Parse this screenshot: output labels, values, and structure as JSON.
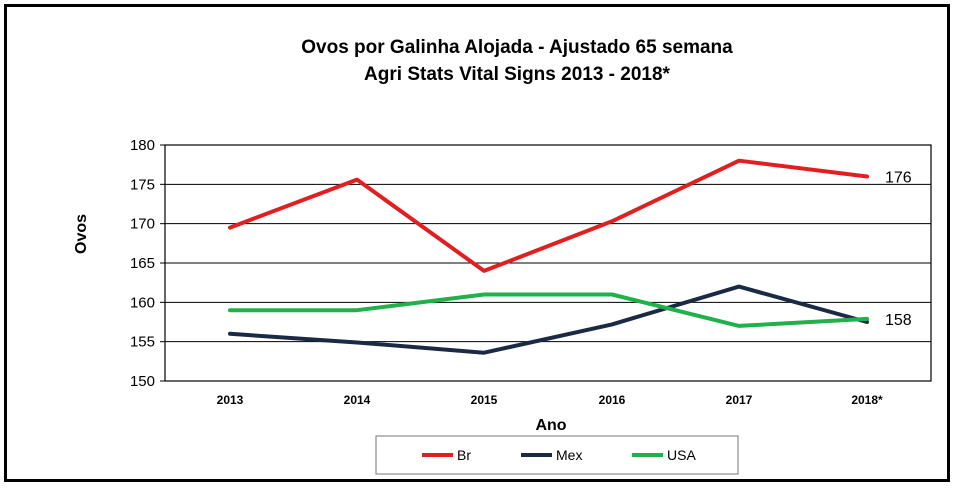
{
  "chart_data": {
    "type": "line",
    "title": "Ovos por Galinha Alojada - Ajustado 65 semana",
    "subtitle": "Agri Stats Vital Signs 2013  - 2018*",
    "xlabel": "Ano",
    "ylabel": "Ovos",
    "categories": [
      "2013",
      "2014",
      "2015",
      "2016",
      "2017",
      "2018*"
    ],
    "ylim": [
      150,
      180
    ],
    "yticks": [
      150,
      155,
      160,
      165,
      170,
      175,
      180
    ],
    "grid": true,
    "legend_position": "bottom",
    "series": [
      {
        "name": "Br",
        "color": "#e02020",
        "values": [
          169.5,
          175.6,
          164,
          170.3,
          178,
          176
        ]
      },
      {
        "name": "Mex",
        "color": "#1b2a44",
        "values": [
          156,
          154.9,
          153.6,
          157.2,
          162,
          157.5
        ]
      },
      {
        "name": "USA",
        "color": "#22b04b",
        "values": [
          159,
          159,
          161,
          161,
          157,
          157.9
        ]
      }
    ],
    "annotations": [
      {
        "series": "Br",
        "text": "176"
      },
      {
        "series": "USA",
        "text": "158"
      }
    ]
  }
}
